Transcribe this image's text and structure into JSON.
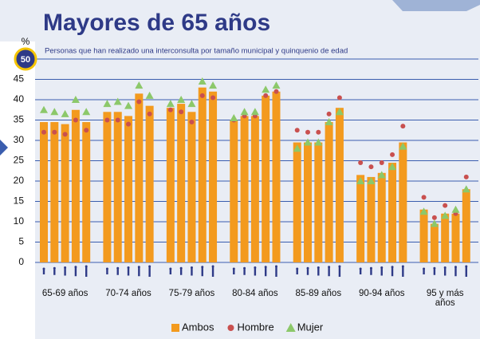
{
  "chart_data": {
    "type": "grouped-bar",
    "title": "Mayores de 65 años",
    "subtitle": "Personas que han realizado una interconsulta por tamaño municipal y quinquenio de edad",
    "y_label": "%",
    "categories": [
      "65-69 años",
      "70-74 años",
      "75-79 años",
      "80-84 años",
      "85-89 años",
      "90-94 años",
      "95 y más años"
    ],
    "series": [
      {
        "name": "Ambos",
        "color": "#f39a1e",
        "marker": "bar",
        "values": [
          [
            34.5,
            34.5,
            34,
            37.5,
            34.5
          ],
          [
            37,
            37,
            36,
            41.5,
            38.5
          ],
          [
            38,
            39,
            37,
            43,
            42
          ],
          [
            35,
            36,
            36,
            41,
            42
          ],
          [
            29.5,
            29.5,
            29.5,
            34.5,
            38
          ],
          [
            21.5,
            21,
            22,
            24.5,
            29.5
          ],
          [
            13,
            9.5,
            12,
            12,
            18
          ]
        ]
      },
      {
        "name": "Hombre",
        "color": "#c9504f",
        "marker": "circle",
        "values": [
          [
            32,
            32,
            31.5,
            35,
            32.5
          ],
          [
            35,
            35,
            34,
            39.5,
            36.5
          ],
          [
            37.5,
            37,
            34.5,
            41,
            40.5
          ],
          [
            35,
            36,
            36,
            41,
            42
          ],
          [
            32.5,
            32,
            32,
            36.5,
            40.5
          ],
          [
            24.5,
            23.5,
            24.5,
            26.5,
            33.5
          ],
          [
            16,
            11,
            14,
            12,
            21
          ]
        ]
      },
      {
        "name": "Mujer",
        "color": "#8cc86a",
        "marker": "triangle",
        "values": [
          [
            37.5,
            37,
            36.5,
            40,
            37
          ],
          [
            39,
            39.5,
            38.5,
            43.5,
            41
          ],
          [
            39,
            40,
            39,
            44.5,
            43.5
          ],
          [
            35.5,
            37,
            37,
            42.5,
            43.5
          ],
          [
            28,
            29.5,
            29.5,
            34.5,
            37
          ],
          [
            20,
            20,
            21.5,
            23.5,
            28.5
          ],
          [
            12.5,
            9.5,
            11.5,
            13,
            18
          ]
        ]
      }
    ],
    "ylim": [
      0,
      50
    ],
    "yticks": [
      0,
      5,
      10,
      15,
      20,
      25,
      30,
      35,
      40,
      45,
      50
    ],
    "grid": true,
    "legend": "bottom"
  }
}
